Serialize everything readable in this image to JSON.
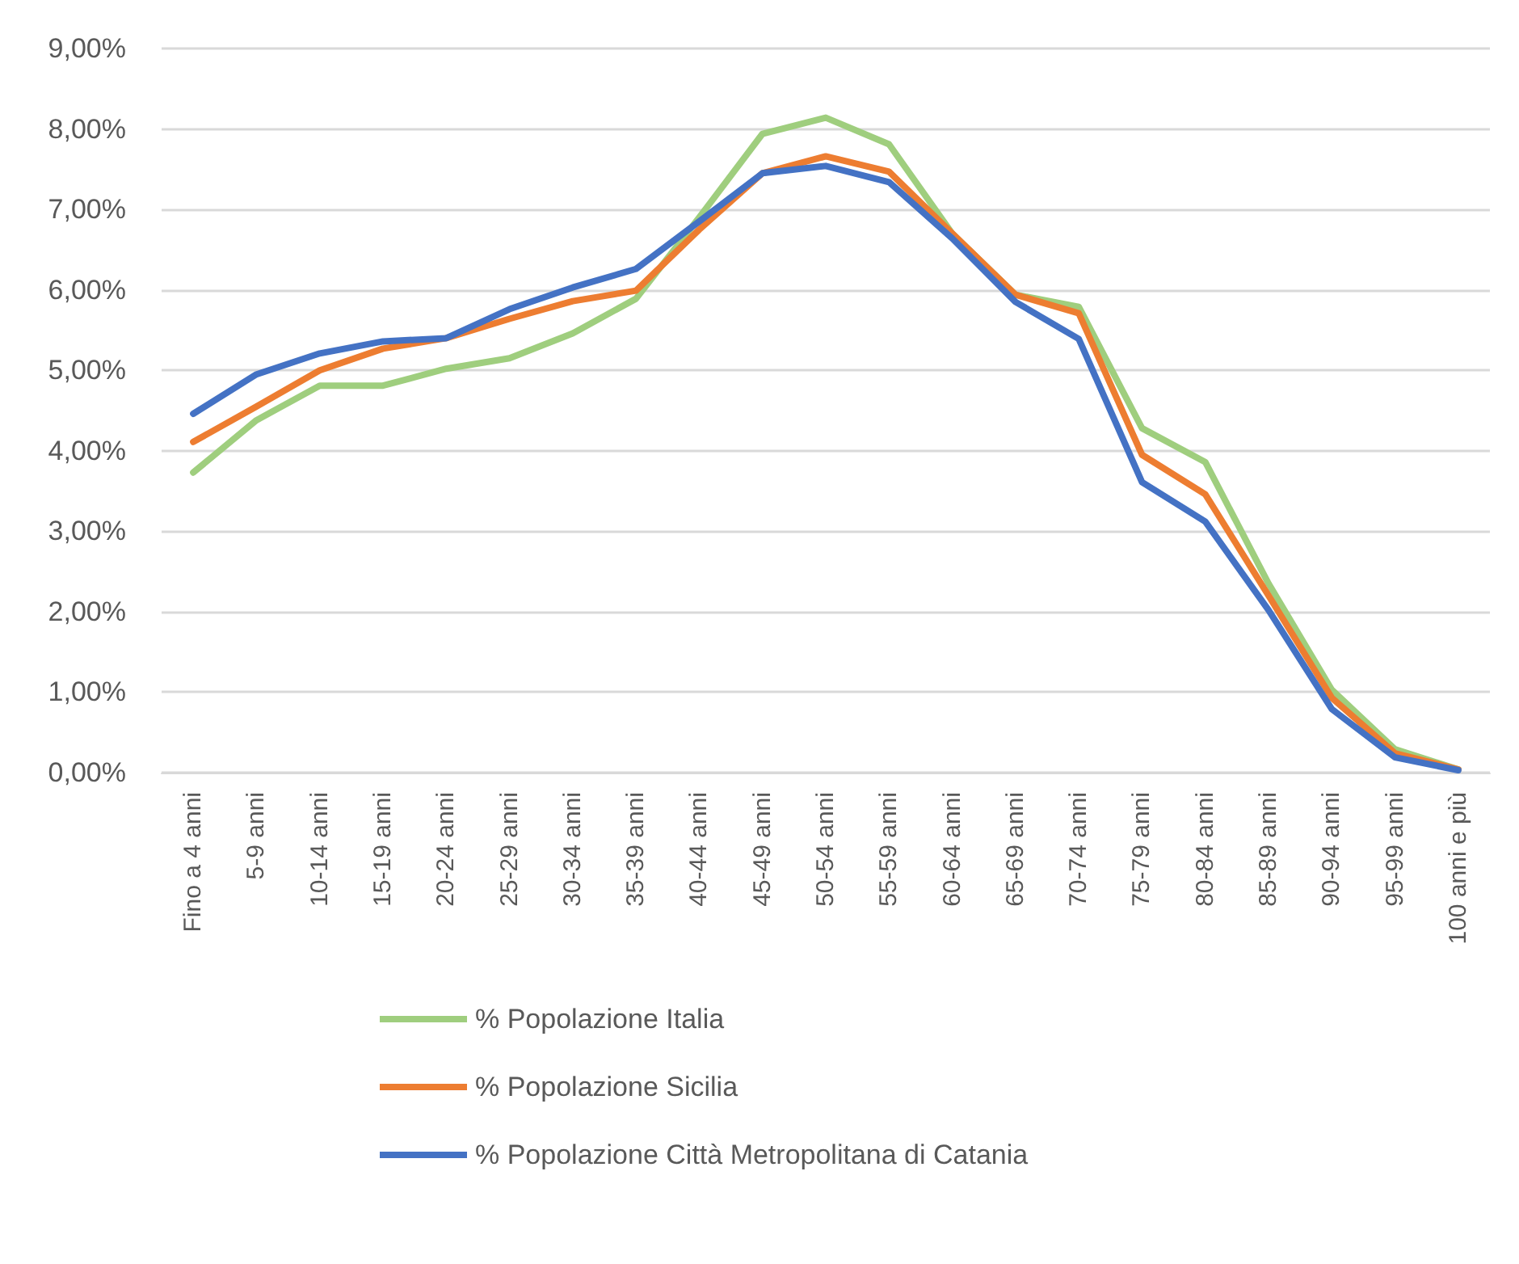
{
  "chart_data": {
    "type": "line",
    "categories": [
      "Fino a 4 anni",
      "5-9 anni",
      "10-14 anni",
      "15-19 anni",
      "20-24 anni",
      "25-29 anni",
      "30-34 anni",
      "35-39 anni",
      "40-44 anni",
      "45-49 anni",
      "50-54 anni",
      "55-59 anni",
      "60-64 anni",
      "65-69 anni",
      "70-74 anni",
      "75-79 anni",
      "80-84 anni",
      "85-89 anni",
      "90-94 anni",
      "95-99 anni",
      "100 anni e più"
    ],
    "series": [
      {
        "name": "% Popolazione Italia",
        "color": "#9fce7e",
        "values": [
          3.73,
          4.38,
          4.81,
          4.81,
          5.02,
          5.15,
          5.46,
          5.89,
          6.9,
          7.94,
          8.14,
          7.81,
          6.7,
          5.94,
          5.79,
          4.28,
          3.86,
          2.35,
          1.03,
          0.29,
          0.04
        ]
      },
      {
        "name": "% Popolazione Sicilia",
        "color": "#ed7d31",
        "values": [
          4.11,
          4.55,
          5.0,
          5.27,
          5.4,
          5.64,
          5.86,
          5.99,
          6.75,
          7.45,
          7.66,
          7.47,
          6.7,
          5.94,
          5.71,
          3.95,
          3.46,
          2.2,
          0.93,
          0.24,
          0.04
        ]
      },
      {
        "name": "% Popolazione Città Metropolitana di Catania",
        "color": "#4472c4",
        "values": [
          4.46,
          4.95,
          5.21,
          5.36,
          5.4,
          5.76,
          6.03,
          6.26,
          6.85,
          7.45,
          7.54,
          7.34,
          6.64,
          5.85,
          5.39,
          3.61,
          3.12,
          2.02,
          0.79,
          0.19,
          0.03
        ]
      }
    ],
    "ylim": [
      0,
      9
    ],
    "yticks": [
      {
        "value": 0,
        "label": "0,00%"
      },
      {
        "value": 1,
        "label": "1,00%"
      },
      {
        "value": 2,
        "label": "2,00%"
      },
      {
        "value": 3,
        "label": "3,00%"
      },
      {
        "value": 4,
        "label": "4,00%"
      },
      {
        "value": 5,
        "label": "5,00%"
      },
      {
        "value": 6,
        "label": "6,00%"
      },
      {
        "value": 7,
        "label": "7,00%"
      },
      {
        "value": 8,
        "label": "8,00%"
      },
      {
        "value": 9,
        "label": "9,00%"
      }
    ],
    "grid": "y",
    "legend": "bottom",
    "marker": "none",
    "line_style": "solid"
  }
}
